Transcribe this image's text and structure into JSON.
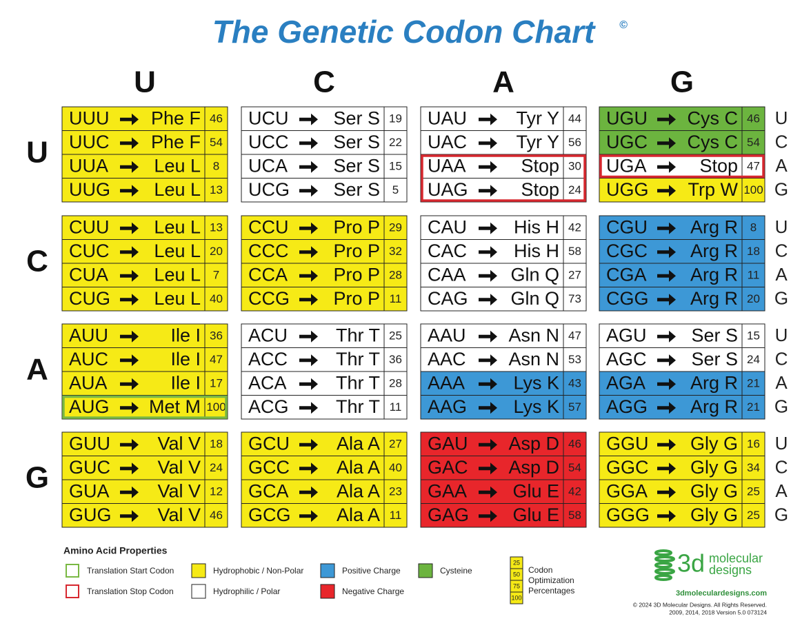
{
  "title": "The Genetic Codon Chart",
  "title_mark": "©",
  "columns": [
    "U",
    "C",
    "A",
    "G"
  ],
  "rows": [
    "U",
    "C",
    "A",
    "G"
  ],
  "third": [
    "U",
    "C",
    "A",
    "G"
  ],
  "grid": [
    [
      [
        [
          "UUU",
          "Phe F",
          46,
          "#f6ea16"
        ],
        [
          "UUC",
          "Phe F",
          54,
          "#f6ea16"
        ],
        [
          "UUA",
          "Leu L",
          8,
          "#f6ea16"
        ],
        [
          "UUG",
          "Leu L",
          13,
          "#f6ea16"
        ]
      ],
      [
        [
          "UCU",
          "Ser S",
          19,
          "#ffffff"
        ],
        [
          "UCC",
          "Ser S",
          22,
          "#ffffff"
        ],
        [
          "UCA",
          "Ser S",
          15,
          "#ffffff"
        ],
        [
          "UCG",
          "Ser S",
          5,
          "#ffffff"
        ]
      ],
      [
        [
          "UAU",
          "Tyr Y",
          44,
          "#ffffff"
        ],
        [
          "UAC",
          "Tyr Y",
          56,
          "#ffffff"
        ],
        [
          "UAA",
          "Stop",
          30,
          "#ffffff",
          "#d7282f"
        ],
        [
          "UAG",
          "Stop",
          24,
          "#ffffff",
          "#d7282f"
        ]
      ],
      [
        [
          "UGU",
          "Cys C",
          46,
          "#6cb43f"
        ],
        [
          "UGC",
          "Cys C",
          54,
          "#6cb43f"
        ],
        [
          "UGA",
          "Stop",
          47,
          "#ffffff",
          "#d7282f"
        ],
        [
          "UGG",
          "Trp W",
          100,
          "#f6ea16"
        ]
      ]
    ],
    [
      [
        [
          "CUU",
          "Leu L",
          13,
          "#f6ea16"
        ],
        [
          "CUC",
          "Leu L",
          20,
          "#f6ea16"
        ],
        [
          "CUA",
          "Leu L",
          7,
          "#f6ea16"
        ],
        [
          "CUG",
          "Leu L",
          40,
          "#f6ea16"
        ]
      ],
      [
        [
          "CCU",
          "Pro P",
          29,
          "#f6ea16"
        ],
        [
          "CCC",
          "Pro P",
          32,
          "#f6ea16"
        ],
        [
          "CCA",
          "Pro P",
          28,
          "#f6ea16"
        ],
        [
          "CCG",
          "Pro P",
          11,
          "#f6ea16"
        ]
      ],
      [
        [
          "CAU",
          "His H",
          42,
          "#ffffff"
        ],
        [
          "CAC",
          "His H",
          58,
          "#ffffff"
        ],
        [
          "CAA",
          "Gln Q",
          27,
          "#ffffff"
        ],
        [
          "CAG",
          "Gln Q",
          73,
          "#ffffff"
        ]
      ],
      [
        [
          "CGU",
          "Arg R",
          8,
          "#3d98d6"
        ],
        [
          "CGC",
          "Arg R",
          18,
          "#3d98d6"
        ],
        [
          "CGA",
          "Arg R",
          11,
          "#3d98d6"
        ],
        [
          "CGG",
          "Arg R",
          20,
          "#3d98d6"
        ]
      ]
    ],
    [
      [
        [
          "AUU",
          "Ile  I",
          36,
          "#f6ea16"
        ],
        [
          "AUC",
          "Ile  I",
          47,
          "#f6ea16"
        ],
        [
          "AUA",
          "Ile  I",
          17,
          "#f6ea16"
        ],
        [
          "AUG",
          "Met M",
          100,
          "#f6ea16",
          "#79b843"
        ]
      ],
      [
        [
          "ACU",
          "Thr T",
          25,
          "#ffffff"
        ],
        [
          "ACC",
          "Thr T",
          36,
          "#ffffff"
        ],
        [
          "ACA",
          "Thr T",
          28,
          "#ffffff"
        ],
        [
          "ACG",
          "Thr T",
          11,
          "#ffffff"
        ]
      ],
      [
        [
          "AAU",
          "Asn N",
          47,
          "#ffffff"
        ],
        [
          "AAC",
          "Asn N",
          53,
          "#ffffff"
        ],
        [
          "AAA",
          "Lys K",
          43,
          "#3d98d6"
        ],
        [
          "AAG",
          "Lys K",
          57,
          "#3d98d6"
        ]
      ],
      [
        [
          "AGU",
          "Ser S",
          15,
          "#ffffff"
        ],
        [
          "AGC",
          "Ser S",
          24,
          "#ffffff"
        ],
        [
          "AGA",
          "Arg R",
          21,
          "#3d98d6"
        ],
        [
          "AGG",
          "Arg R",
          21,
          "#3d98d6"
        ]
      ]
    ],
    [
      [
        [
          "GUU",
          "Val V",
          18,
          "#f6ea16"
        ],
        [
          "GUC",
          "Val V",
          24,
          "#f6ea16"
        ],
        [
          "GUA",
          "Val V",
          12,
          "#f6ea16"
        ],
        [
          "GUG",
          "Val V",
          46,
          "#f6ea16"
        ]
      ],
      [
        [
          "GCU",
          "Ala A",
          27,
          "#f6ea16"
        ],
        [
          "GCC",
          "Ala A",
          40,
          "#f6ea16"
        ],
        [
          "GCA",
          "Ala A",
          23,
          "#f6ea16"
        ],
        [
          "GCG",
          "Ala A",
          11,
          "#f6ea16"
        ]
      ],
      [
        [
          "GAU",
          "Asp D",
          46,
          "#e8262b"
        ],
        [
          "GAC",
          "Asp D",
          54,
          "#e8262b"
        ],
        [
          "GAA",
          "Glu E",
          42,
          "#e8262b"
        ],
        [
          "GAG",
          "Glu E",
          58,
          "#e8262b"
        ]
      ],
      [
        [
          "GGU",
          "Gly G",
          16,
          "#f6ea16"
        ],
        [
          "GGC",
          "Gly G",
          34,
          "#f6ea16"
        ],
        [
          "GGA",
          "Gly G",
          25,
          "#f6ea16"
        ],
        [
          "GGG",
          "Gly G",
          25,
          "#f6ea16"
        ]
      ]
    ]
  ],
  "legend": {
    "title": "Amino Acid Properties",
    "items": [
      {
        "label": "Translation Start Codon",
        "outline": "#79b843"
      },
      {
        "label": "Translation Stop Codon",
        "outline": "#d7282f"
      },
      {
        "label": "Hydrophobic / Non-Polar",
        "fill": "#f6ea16"
      },
      {
        "label": "Hydrophilic / Polar",
        "fill": "#ffffff"
      },
      {
        "label": "Positive Charge",
        "fill": "#3d98d6"
      },
      {
        "label": "Negative Charge",
        "fill": "#e8262b"
      },
      {
        "label": "Cysteine",
        "fill": "#6cb43f"
      }
    ],
    "scale": {
      "values": [
        25,
        50,
        75,
        100
      ],
      "color": "#f6ea16",
      "label": [
        "Codon",
        "Optimization",
        "Percentages"
      ]
    }
  },
  "logo": {
    "mark": "3d",
    "name": [
      "molecular",
      "designs"
    ]
  },
  "url": "3dmoleculardesigns.com",
  "copyright": [
    "© 2024 3D Molecular Designs. All Rights Reserved.",
    "2009, 2014, 2018  Version 5.0   073124"
  ]
}
